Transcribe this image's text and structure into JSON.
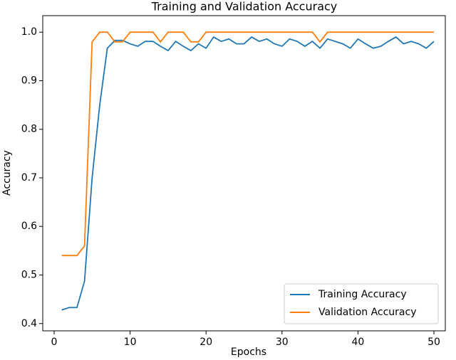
{
  "chart_data": {
    "type": "line",
    "title": "Training and Validation Accuracy",
    "x_label": "Epochs",
    "y_label": "Accuracy",
    "x": [
      1,
      2,
      3,
      4,
      5,
      6,
      7,
      8,
      9,
      10,
      11,
      12,
      13,
      14,
      15,
      16,
      17,
      18,
      19,
      20,
      21,
      22,
      23,
      24,
      25,
      26,
      27,
      28,
      29,
      30,
      31,
      32,
      33,
      34,
      35,
      36,
      37,
      38,
      39,
      40,
      41,
      42,
      43,
      44,
      45,
      46,
      47,
      48,
      49,
      50
    ],
    "series": [
      {
        "name": "Training Accuracy",
        "color": "#1f77b4",
        "values": [
          0.428,
          0.433,
          0.433,
          0.487,
          0.7,
          0.85,
          0.967,
          0.983,
          0.983,
          0.976,
          0.971,
          0.981,
          0.981,
          0.971,
          0.962,
          0.981,
          0.971,
          0.962,
          0.976,
          0.967,
          0.99,
          0.981,
          0.986,
          0.976,
          0.976,
          0.99,
          0.981,
          0.986,
          0.976,
          0.971,
          0.986,
          0.981,
          0.971,
          0.981,
          0.967,
          0.986,
          0.981,
          0.976,
          0.967,
          0.986,
          0.976,
          0.967,
          0.971,
          0.981,
          0.99,
          0.976,
          0.981,
          0.976,
          0.967,
          0.981
        ]
      },
      {
        "name": "Validation Accuracy",
        "color": "#ff7f0e",
        "values": [
          0.54,
          0.54,
          0.54,
          0.56,
          0.98,
          1.0,
          1.0,
          0.98,
          0.98,
          1.0,
          1.0,
          1.0,
          1.0,
          0.98,
          1.0,
          1.0,
          1.0,
          0.98,
          0.98,
          1.0,
          1.0,
          1.0,
          1.0,
          1.0,
          1.0,
          1.0,
          1.0,
          1.0,
          1.0,
          1.0,
          1.0,
          1.0,
          1.0,
          1.0,
          0.98,
          1.0,
          1.0,
          1.0,
          1.0,
          1.0,
          1.0,
          1.0,
          1.0,
          1.0,
          1.0,
          1.0,
          1.0,
          1.0,
          1.0,
          1.0
        ]
      }
    ],
    "xlim": [
      -1.5,
      51.5
    ],
    "xticks": [
      0,
      10,
      20,
      30,
      40,
      50
    ],
    "ylim": [
      0.385,
      1.034
    ],
    "yticks": [
      0.4,
      0.5,
      0.6,
      0.7,
      0.8,
      0.9,
      {
        "value": 1,
        "label": "1.0"
      }
    ],
    "grid": false,
    "legend": "lower right"
  }
}
